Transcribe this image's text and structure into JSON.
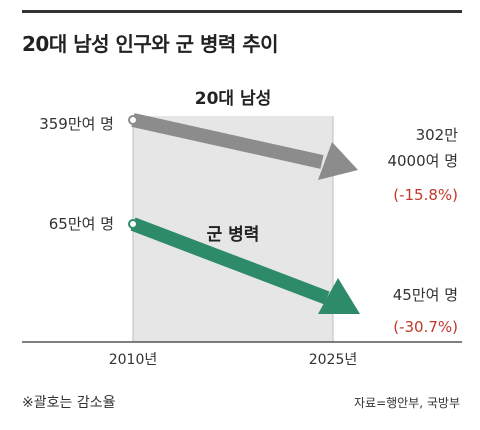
{
  "title": "20대 남성 인구와 군 병력 추이",
  "note": "※괄호는 감소율",
  "source": "자료=행안부, 국방부",
  "colors": {
    "male20s": "#8c8c8c",
    "military": "#2e8b6a",
    "shade": "#e6e6e6",
    "pct": "#c0392b"
  },
  "chart_data": {
    "type": "line",
    "x": [
      "2010년",
      "2025년"
    ],
    "series": [
      {
        "name": "20대 남성",
        "values": [
          3590000,
          3024000
        ],
        "start_label": "359만여 명",
        "end_label_line1": "302만",
        "end_label_line2": "4000여 명",
        "change_label": "(-15.8%)"
      },
      {
        "name": "군 병력",
        "values": [
          650000,
          450000
        ],
        "start_label": "65만여 명",
        "end_label_line1": "45만여 명",
        "change_label": "(-30.7%)"
      }
    ]
  }
}
